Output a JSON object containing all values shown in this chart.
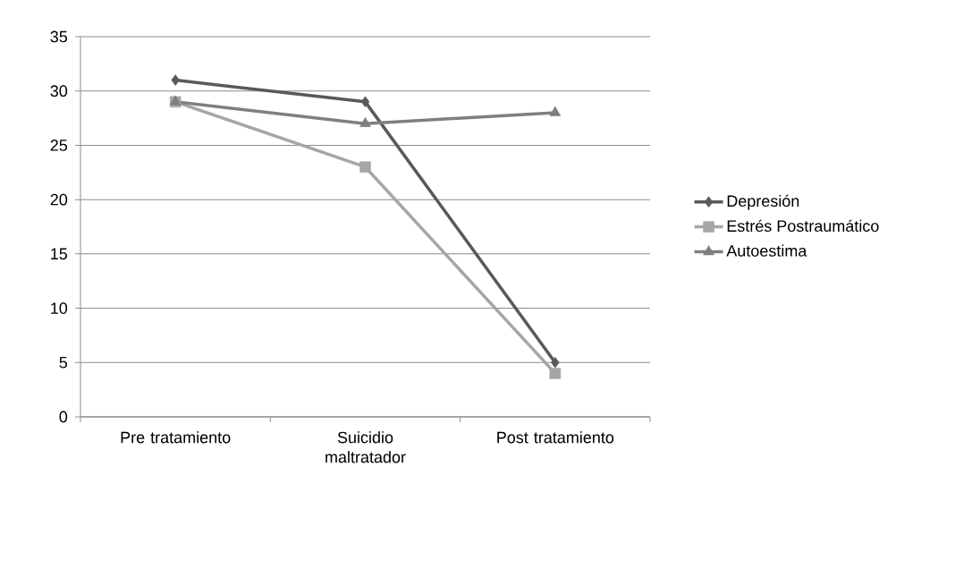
{
  "chart_data": {
    "type": "line",
    "categories": [
      "Pre tratamiento",
      "Suicidio maltratador",
      "Post tratamiento"
    ],
    "series": [
      {
        "name": "Depresión",
        "color": "#595959",
        "marker": "diamond",
        "values": [
          31,
          29,
          5
        ]
      },
      {
        "name": "Estrés Postraumático",
        "color": "#a6a6a6",
        "marker": "square",
        "values": [
          29,
          23,
          4
        ]
      },
      {
        "name": "Autoestima",
        "color": "#7f7f7f",
        "marker": "triangle",
        "values": [
          29,
          27,
          28
        ]
      }
    ],
    "ylim": [
      0,
      35
    ],
    "yticks": [
      0,
      5,
      10,
      15,
      20,
      25,
      30,
      35
    ],
    "grid": "y",
    "legend": "right",
    "line_style": "solid"
  }
}
